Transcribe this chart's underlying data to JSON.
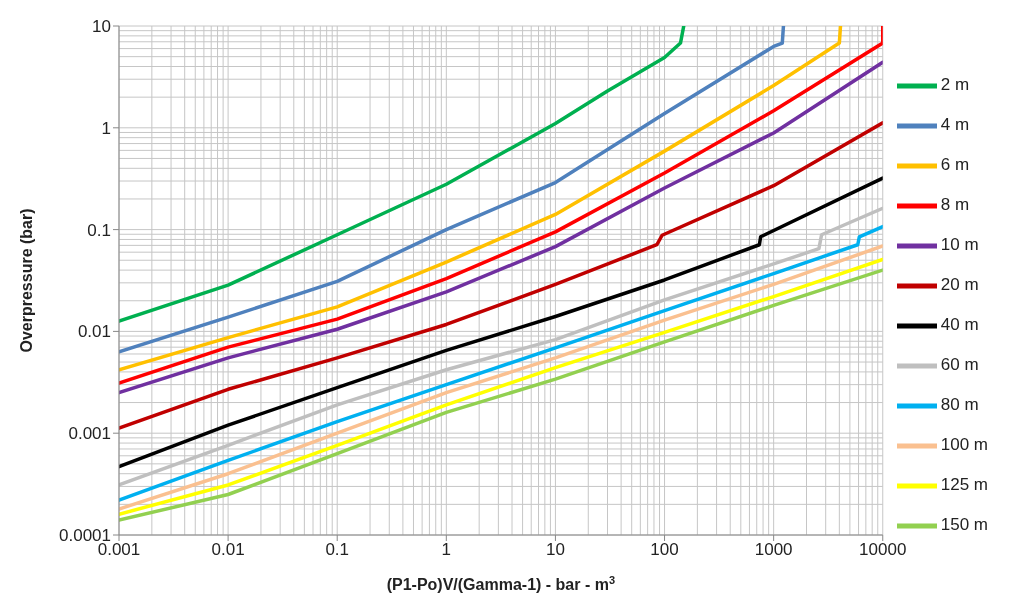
{
  "chart_data": {
    "type": "line",
    "xlabel": "(P1-Po)V/(Gamma-1) - bar - m$^{3}$",
    "ylabel": "Overpressure (bar)",
    "log": "xy",
    "grid": true,
    "legend": "right",
    "xlim": [
      0.001,
      10000
    ],
    "xticks": [
      0.001,
      0.01,
      0.1,
      1,
      10,
      100,
      1000,
      10000
    ],
    "ylim": [
      0.0001,
      10
    ],
    "yticks": [
      0.0001,
      0.001,
      0.01,
      0.1,
      1,
      10
    ],
    "series": [
      {
        "name": "2 m",
        "color": "#00b050",
        "x": [
          0.001,
          0.01,
          0.1,
          1,
          10,
          30,
          100,
          140,
          150
        ],
        "values": [
          0.0126,
          0.0285,
          0.089,
          0.279,
          1.1,
          2.3,
          4.9,
          6.8,
          10
        ]
      },
      {
        "name": "4 m",
        "color": "#4f81bd",
        "x": [
          0.001,
          0.01,
          0.1,
          1,
          10,
          100,
          1000,
          1200,
          1230
        ],
        "values": [
          0.0063,
          0.0138,
          0.031,
          0.1,
          0.29,
          1.38,
          6.3,
          6.8,
          10
        ]
      },
      {
        "name": "6 m",
        "color": "#ffc000",
        "x": [
          0.001,
          0.01,
          0.1,
          1,
          10,
          100,
          1000,
          4000,
          4100
        ],
        "values": [
          0.0042,
          0.0087,
          0.0174,
          0.048,
          0.141,
          0.59,
          2.6,
          6.8,
          10
        ]
      },
      {
        "name": "8 m",
        "color": "#ff0000",
        "x": [
          0.001,
          0.01,
          0.1,
          1,
          10,
          100,
          1000,
          10000,
          10000
        ],
        "values": [
          0.0031,
          0.007,
          0.0132,
          0.033,
          0.095,
          0.36,
          1.47,
          6.8,
          10
        ]
      },
      {
        "name": "10 m",
        "color": "#7030a0",
        "x": [
          0.001,
          0.01,
          0.1,
          1,
          10,
          100,
          1000,
          10000
        ],
        "values": [
          0.0025,
          0.0055,
          0.0105,
          0.0245,
          0.068,
          0.256,
          0.89,
          4.4
        ]
      },
      {
        "name": "20 m",
        "color": "#c00000",
        "x": [
          0.001,
          0.01,
          0.1,
          1,
          10,
          85,
          95,
          1000,
          10000
        ],
        "values": [
          0.00112,
          0.0027,
          0.0055,
          0.0117,
          0.029,
          0.071,
          0.088,
          0.27,
          1.12
        ]
      },
      {
        "name": "40 m",
        "color": "#000000",
        "x": [
          0.001,
          0.01,
          0.1,
          1,
          10,
          100,
          740,
          760,
          10000
        ],
        "values": [
          0.00047,
          0.0012,
          0.0028,
          0.0065,
          0.014,
          0.032,
          0.071,
          0.085,
          0.32
        ]
      },
      {
        "name": "60 m",
        "color": "#bfbfbf",
        "x": [
          0.001,
          0.01,
          0.1,
          1,
          10,
          100,
          1000,
          2600,
          2750,
          10000
        ],
        "values": [
          0.00031,
          0.00076,
          0.0019,
          0.0042,
          0.0083,
          0.0204,
          0.046,
          0.065,
          0.089,
          0.162
        ]
      },
      {
        "name": "80 m",
        "color": "#00b0f0",
        "x": [
          0.001,
          0.01,
          0.1,
          1,
          10,
          100,
          1000,
          5900,
          6100,
          10000
        ],
        "values": [
          0.00022,
          0.00054,
          0.0013,
          0.003,
          0.0069,
          0.016,
          0.037,
          0.071,
          0.085,
          0.107
        ]
      },
      {
        "name": "100  m",
        "color": "#fac090",
        "x": [
          0.001,
          0.01,
          0.1,
          1,
          10,
          100,
          1000,
          10000
        ],
        "values": [
          0.00018,
          0.0004,
          0.001,
          0.0025,
          0.0055,
          0.0129,
          0.029,
          0.069
        ]
      },
      {
        "name": "125 m",
        "color": "#ffff00",
        "x": [
          0.001,
          0.01,
          0.1,
          1,
          10,
          100,
          1000,
          10000
        ],
        "values": [
          0.00016,
          0.00031,
          0.00076,
          0.0019,
          0.0044,
          0.0098,
          0.022,
          0.051
        ]
      },
      {
        "name": "150 m",
        "color": "#92d050",
        "x": [
          0.001,
          0.01,
          0.1,
          1,
          10,
          100,
          1000,
          10000
        ],
        "values": [
          0.00014,
          0.00025,
          0.00063,
          0.0016,
          0.0034,
          0.0079,
          0.018,
          0.04
        ]
      }
    ]
  }
}
